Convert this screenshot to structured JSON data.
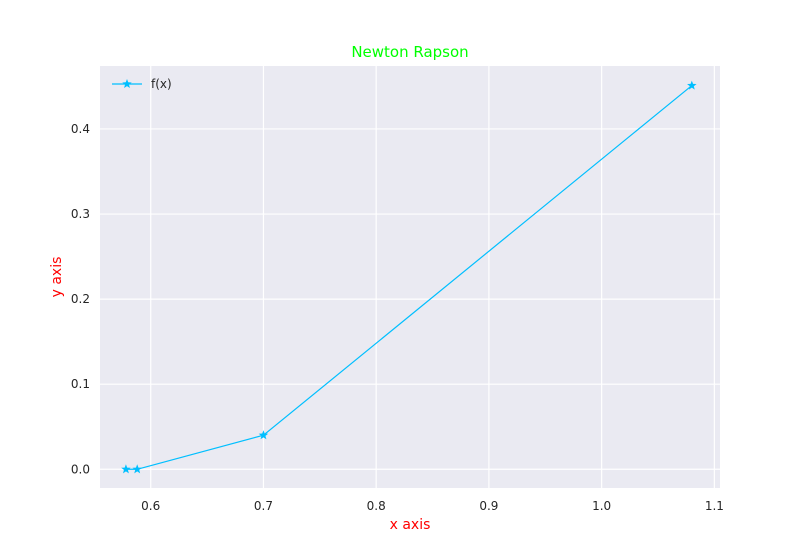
{
  "chart_data": {
    "type": "line",
    "title": "Newton Rapson",
    "title_color": "#00ff00",
    "xlabel": "x axis",
    "ylabel": "y axis",
    "label_color": "#ff0000",
    "xlim": [
      0.555,
      1.105
    ],
    "ylim": [
      -0.022,
      0.474
    ],
    "x_ticks": [
      0.6,
      0.7,
      0.8,
      0.9,
      1.0,
      1.1
    ],
    "x_tick_labels": [
      "0.6",
      "0.7",
      "0.8",
      "0.9",
      "1.0",
      "1.1"
    ],
    "y_ticks": [
      0.0,
      0.1,
      0.2,
      0.3,
      0.4
    ],
    "y_tick_labels": [
      "0.0",
      "0.1",
      "0.2",
      "0.3",
      "0.4"
    ],
    "grid": true,
    "background": "#eaeaf2",
    "legend_position": "top-left",
    "series": [
      {
        "name": "f(x)",
        "color": "#00bfff",
        "marker": "star",
        "x": [
          0.578,
          0.588,
          0.7,
          1.08
        ],
        "y": [
          0.0,
          0.0,
          0.04,
          0.451
        ]
      }
    ]
  }
}
